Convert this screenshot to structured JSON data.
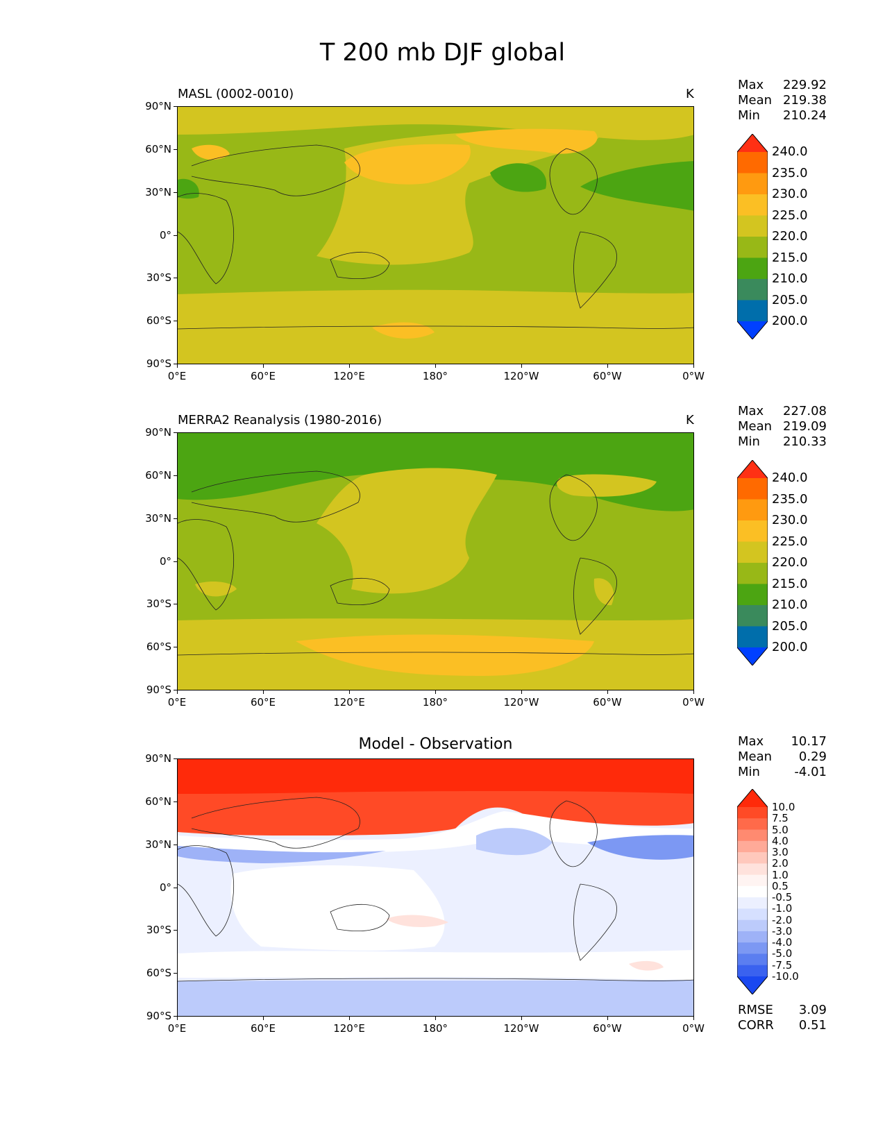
{
  "figure": {
    "title": "T 200 mb DJF global"
  },
  "axes": {
    "y_ticks": [
      "90°N",
      "60°N",
      "30°N",
      "0°",
      "30°S",
      "60°S",
      "90°S"
    ],
    "x_ticks": [
      "0°E",
      "60°E",
      "120°E",
      "180°",
      "120°W",
      "60°W",
      "0°W"
    ]
  },
  "panels": [
    {
      "id": "model",
      "title": "MASL (0002-0010)",
      "units": "K",
      "stats": [
        {
          "label": "Max",
          "value": "229.92"
        },
        {
          "label": "Mean",
          "value": "219.38"
        },
        {
          "label": "Min",
          "value": "210.24"
        }
      ]
    },
    {
      "id": "obs",
      "title": "MERRA2 Reanalysis (1980-2016)",
      "units": "K",
      "stats": [
        {
          "label": "Max",
          "value": "227.08"
        },
        {
          "label": "Mean",
          "value": "219.09"
        },
        {
          "label": "Min",
          "value": "210.33"
        }
      ]
    },
    {
      "id": "diff",
      "title": "Model - Observation",
      "units": "",
      "stats": [
        {
          "label": "Max",
          "value": "10.17"
        },
        {
          "label": "Mean",
          "value": "0.29"
        },
        {
          "label": "Min",
          "value": "-4.01"
        }
      ],
      "metrics": [
        {
          "label": "RMSE",
          "value": "3.09"
        },
        {
          "label": "CORR",
          "value": "0.51"
        }
      ]
    }
  ],
  "colorbars": {
    "abs": {
      "labels": [
        "240.0",
        "235.0",
        "230.0",
        "225.0",
        "220.0",
        "215.0",
        "210.0",
        "205.0",
        "200.0"
      ],
      "colors": [
        "#ff3014",
        "#ff6a00",
        "#ff9a10",
        "#fbbf24",
        "#d3c520",
        "#98b817",
        "#4ca512",
        "#3a8a5c",
        "#006eab",
        "#0040ff"
      ]
    },
    "diff": {
      "labels": [
        "10.0",
        "7.5",
        "5.0",
        "4.0",
        "3.0",
        "2.0",
        "1.0",
        "0.5",
        "-0.5",
        "-1.0",
        "-2.0",
        "-3.0",
        "-4.0",
        "-5.0",
        "-7.5",
        "-10.0"
      ],
      "colors": [
        "#ff2a0a",
        "#ff4a26",
        "#ff6a4a",
        "#ff8a70",
        "#ffaa98",
        "#ffc8bc",
        "#ffe2dc",
        "#fff4f2",
        "#ffffff",
        "#ecf0ff",
        "#d6e0ff",
        "#bccbfb",
        "#9eb2f7",
        "#7c98f3",
        "#5b7ef0",
        "#3a62ef",
        "#1a48f0"
      ]
    }
  },
  "chart_data": [
    {
      "type": "heatmap",
      "title": "MASL (0002-0010)",
      "variable": "T 200 mb DJF",
      "units": "K",
      "x_range": [
        0,
        360
      ],
      "y_range": [
        -90,
        90
      ],
      "levels": [
        200,
        205,
        210,
        215,
        220,
        225,
        230,
        235,
        240
      ],
      "max": 229.92,
      "mean": 219.38,
      "min": 210.24
    },
    {
      "type": "heatmap",
      "title": "MERRA2 Reanalysis (1980-2016)",
      "variable": "T 200 mb DJF",
      "units": "K",
      "x_range": [
        0,
        360
      ],
      "y_range": [
        -90,
        90
      ],
      "levels": [
        200,
        205,
        210,
        215,
        220,
        225,
        230,
        235,
        240
      ],
      "max": 227.08,
      "mean": 219.09,
      "min": 210.33
    },
    {
      "type": "heatmap",
      "title": "Model - Observation",
      "x_range": [
        0,
        360
      ],
      "y_range": [
        -90,
        90
      ],
      "levels": [
        -10,
        -7.5,
        -5,
        -4,
        -3,
        -2,
        -1,
        -0.5,
        0.5,
        1,
        2,
        3,
        4,
        5,
        7.5,
        10
      ],
      "max": 10.17,
      "mean": 0.29,
      "min": -4.01,
      "rmse": 3.09,
      "corr": 0.51
    }
  ]
}
